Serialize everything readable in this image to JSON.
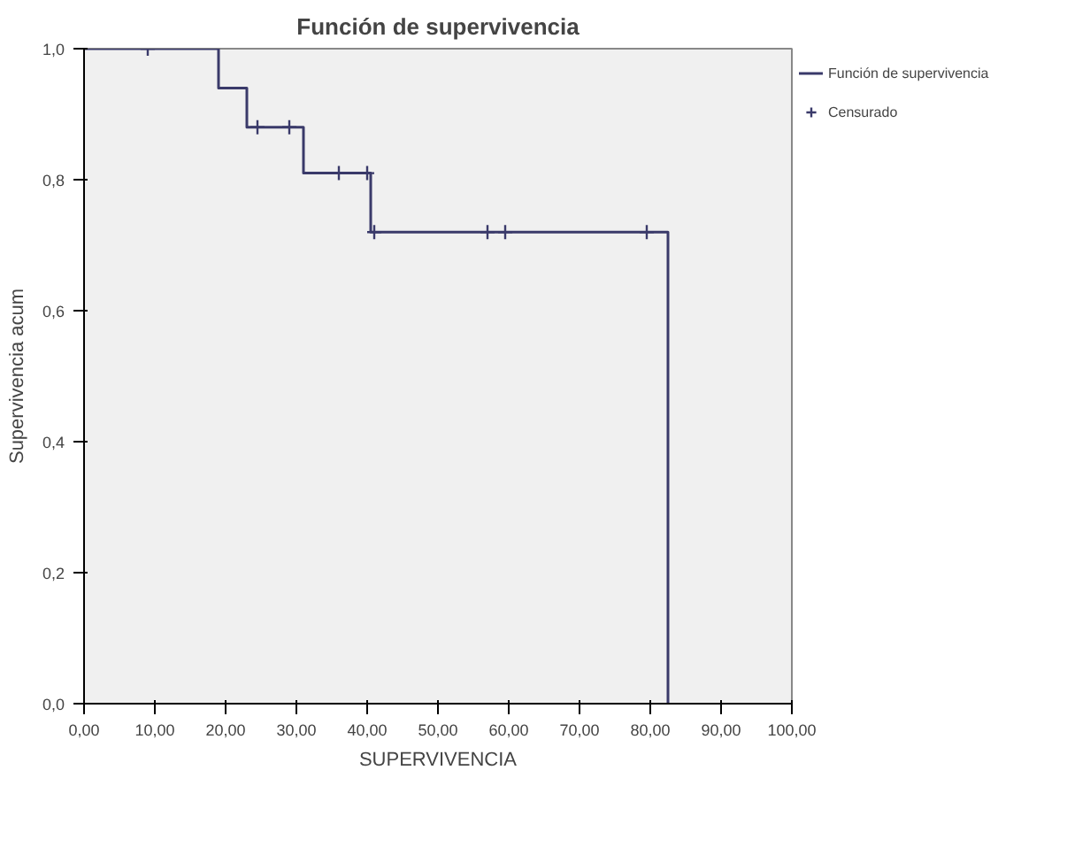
{
  "chart_data": {
    "type": "step",
    "title": "Función de supervivencia",
    "xlabel": "SUPERVIVENCIA",
    "ylabel": "Supervivencia acum",
    "series": [
      {
        "name": "Función de supervivencia",
        "color": "#3a3a6a",
        "x": [
          0,
          19,
          23,
          31,
          40.5,
          82.5
        ],
        "values": [
          1,
          0.94,
          0.88,
          0.81,
          0.72,
          0
        ]
      },
      {
        "name": "Censurado",
        "type": "scatter",
        "marker": "cross",
        "color": "#3a3a6a",
        "x": [
          9,
          24.5,
          29,
          36,
          40,
          41,
          57,
          59.5,
          79.5
        ],
        "values": [
          1,
          0.88,
          0.88,
          0.81,
          0.81,
          0.72,
          0.72,
          0.72,
          0.72
        ]
      }
    ],
    "xlim": [
      0,
      100
    ],
    "ylim": [
      0,
      1
    ],
    "xticks": [
      {
        "value": 0,
        "label": "0,00"
      },
      {
        "value": 10,
        "label": "10,00"
      },
      {
        "value": 20,
        "label": "20,00"
      },
      {
        "value": 30,
        "label": "30,00"
      },
      {
        "value": 40,
        "label": "40,00"
      },
      {
        "value": 50,
        "label": "50,00"
      },
      {
        "value": 60,
        "label": "60,00"
      },
      {
        "value": 70,
        "label": "70,00"
      },
      {
        "value": 80,
        "label": "80,00"
      },
      {
        "value": 90,
        "label": "90,00"
      },
      {
        "value": 100,
        "label": "100,00"
      }
    ],
    "yticks": [
      {
        "value": 0,
        "label": "0,0"
      },
      {
        "value": 0.2,
        "label": "0,2"
      },
      {
        "value": 0.4,
        "label": "0,4"
      },
      {
        "value": 0.6,
        "label": "0,6"
      },
      {
        "value": 0.8,
        "label": "0,8"
      },
      {
        "value": 1,
        "label": "1,0"
      }
    ],
    "grid": false,
    "legend": "top right"
  }
}
